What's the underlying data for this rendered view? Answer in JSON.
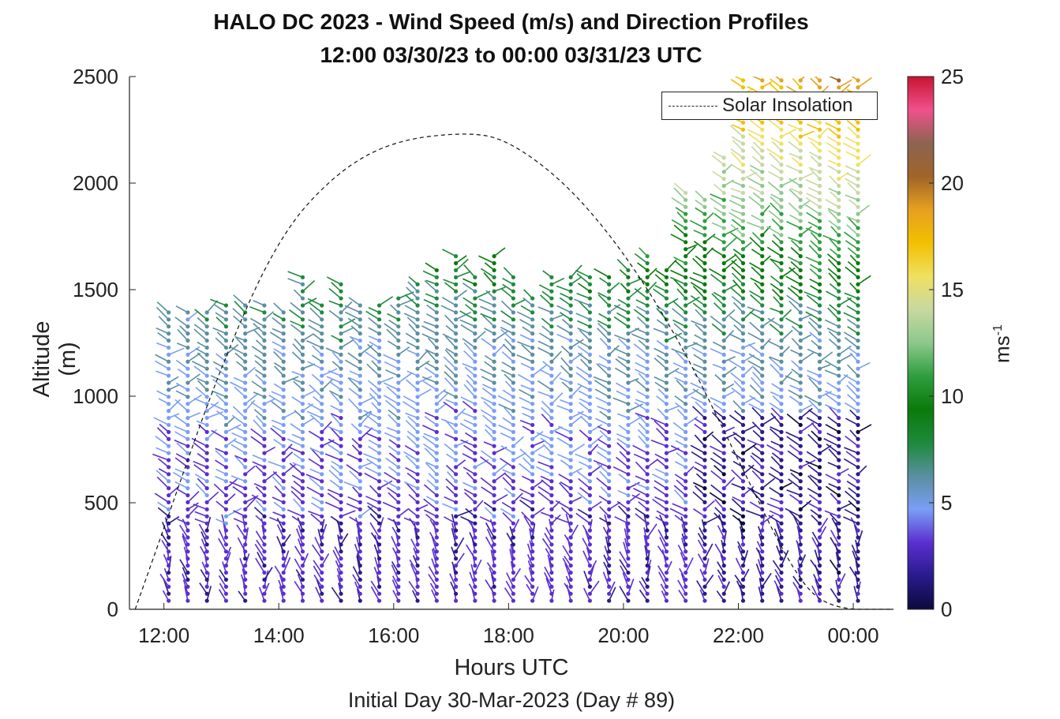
{
  "title_line1": "HALO DC 2023 - Wind Speed (m/s) and Direction Profiles",
  "title_line2": "12:00 03/30/23 to 00:00 03/31/23  UTC",
  "xlabel": "Hours UTC",
  "ylabel": "Altitude (m)",
  "footnote": "Initial Day 30-Mar-2023 (Day # 89)",
  "legend_label": "Solar Insolation",
  "colorbar": {
    "label_main": "ms",
    "label_exp": "-1",
    "ticks": [
      "0",
      "5",
      "10",
      "15",
      "20",
      "25"
    ],
    "range": [
      0,
      25
    ],
    "colors": [
      "#0a0a3c",
      "#2a1a8c",
      "#5a2fd0",
      "#7a9ef5",
      "#5a8fa0",
      "#1e8a3c",
      "#0a7a0a",
      "#2e9e3e",
      "#8cc88c",
      "#c8d8a0",
      "#f0e060",
      "#f2c000",
      "#e6a020",
      "#a06428",
      "#8c6450",
      "#f0508c",
      "#c81432"
    ]
  },
  "chart_data": {
    "type": "wind-barb profile",
    "title": "HALO DC 2023 - Wind Speed (m/s) and Direction Profiles",
    "subtitle": "12:00 03/30/23 to 00:00 03/31/23  UTC",
    "xlabel": "Hours UTC",
    "ylabel": "Altitude (m)",
    "x_ticks": [
      "12:00",
      "14:00",
      "16:00",
      "18:00",
      "20:00",
      "22:00",
      "00:00"
    ],
    "y_ticks": [
      "0",
      "500",
      "1000",
      "1500",
      "2000",
      "2500"
    ],
    "ylim": [
      0,
      2500
    ],
    "xlim_hours": [
      11.4,
      24.7
    ],
    "colorbar_range_ms": [
      0,
      25
    ],
    "series": [
      {
        "name": "Solar Insolation",
        "style": "dashed",
        "points": [
          [
            11.5,
            0
          ],
          [
            12,
            380
          ],
          [
            13,
            1150
          ],
          [
            14,
            1750
          ],
          [
            15,
            2050
          ],
          [
            16,
            2200
          ],
          [
            17.3,
            2240
          ],
          [
            18,
            2200
          ],
          [
            19,
            2000
          ],
          [
            20,
            1680
          ],
          [
            21,
            1250
          ],
          [
            22,
            700
          ],
          [
            23,
            150
          ],
          [
            23.6,
            0
          ],
          [
            24.7,
            0
          ]
        ]
      }
    ],
    "profile_top_m": [
      {
        "time": "12:00",
        "top": 1420
      },
      {
        "time": "12:20",
        "top": 1420
      },
      {
        "time": "12:40",
        "top": 1420
      },
      {
        "time": "13:00",
        "top": 1450
      },
      {
        "time": "13:20",
        "top": 1450
      },
      {
        "time": "13:40",
        "top": 1430
      },
      {
        "time": "14:00",
        "top": 1420
      },
      {
        "time": "14:20",
        "top": 1570
      },
      {
        "time": "14:40",
        "top": 1440
      },
      {
        "time": "15:00",
        "top": 1530
      },
      {
        "time": "15:20",
        "top": 1450
      },
      {
        "time": "15:40",
        "top": 1450
      },
      {
        "time": "16:00",
        "top": 1480
      },
      {
        "time": "16:20",
        "top": 1550
      },
      {
        "time": "16:40",
        "top": 1600
      },
      {
        "time": "17:00",
        "top": 1660
      },
      {
        "time": "17:20",
        "top": 1560
      },
      {
        "time": "17:40",
        "top": 1670
      },
      {
        "time": "18:00",
        "top": 1570
      },
      {
        "time": "18:20",
        "top": 1460
      },
      {
        "time": "18:40",
        "top": 1560
      },
      {
        "time": "19:00",
        "top": 1580
      },
      {
        "time": "19:20",
        "top": 1560
      },
      {
        "time": "19:40",
        "top": 1560
      },
      {
        "time": "20:00",
        "top": 1600
      },
      {
        "time": "20:20",
        "top": 1670
      },
      {
        "time": "20:40",
        "top": 1620
      },
      {
        "time": "21:00",
        "top": 1960
      },
      {
        "time": "21:20",
        "top": 1950
      },
      {
        "time": "21:40",
        "top": 2130
      },
      {
        "time": "22:00",
        "top": 2500
      },
      {
        "time": "22:20",
        "top": 2490
      },
      {
        "time": "22:40",
        "top": 2490
      },
      {
        "time": "23:00",
        "top": 2490
      },
      {
        "time": "23:20",
        "top": 2490
      },
      {
        "time": "23:40",
        "top": 2490
      },
      {
        "time": "24:00",
        "top": 2490
      }
    ]
  }
}
